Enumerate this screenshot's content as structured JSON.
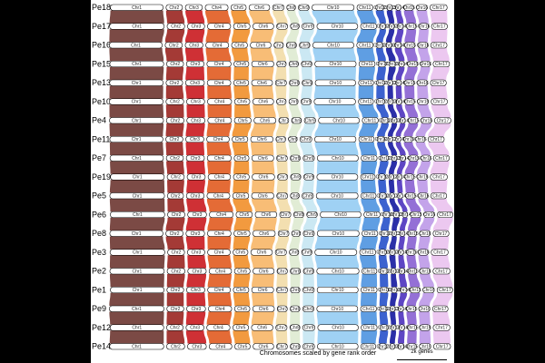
{
  "figure": {
    "caption": "Chromosomes scaled by gene rank order",
    "scale_bar_label": "2k genes",
    "background": "#000000",
    "panel_background": "#ffffff"
  },
  "genomes": [
    "Pe18",
    "Pe17",
    "Pe16",
    "Pe15",
    "Pe13",
    "Pe10",
    "Pe4",
    "Pe11",
    "Pe7",
    "Pe19",
    "Pe5",
    "Pe6",
    "Pe8",
    "Pe3",
    "Pe2",
    "Pe1",
    "Pe9",
    "Pe12",
    "Pe14"
  ],
  "chromosomes": [
    {
      "name": "Chr1",
      "color": "#7b4a45",
      "genes": 3000
    },
    {
      "name": "Chr2",
      "color": "#a43a36",
      "genes": 950
    },
    {
      "name": "Chr3",
      "color": "#cf3035",
      "genes": 1000
    },
    {
      "name": "Chr4",
      "color": "#e46b36",
      "genes": 1300
    },
    {
      "name": "Chr5",
      "color": "#f29a3f",
      "genes": 880
    },
    {
      "name": "Chr6",
      "color": "#f8bd76",
      "genes": 1200
    },
    {
      "name": "Chr7",
      "color": "#f3dfb0",
      "genes": 580
    },
    {
      "name": "Chr8",
      "color": "#e1ecd5",
      "genes": 520
    },
    {
      "name": "Chr9",
      "color": "#cbe8f3",
      "genes": 620
    },
    {
      "name": "Chr10",
      "color": "#9fd1f4",
      "genes": 2300
    },
    {
      "name": "Chr11",
      "color": "#5f9ee3",
      "genes": 860
    },
    {
      "name": "Chr12",
      "color": "#3c62cf",
      "genes": 420
    },
    {
      "name": "Chr13",
      "color": "#2b2fa8",
      "genes": 330
    },
    {
      "name": "Chr14",
      "color": "#5e46c4",
      "genes": 330
    },
    {
      "name": "Chr15",
      "color": "#9470d6",
      "genes": 540
    },
    {
      "name": "Chr16",
      "color": "#c3a3ea",
      "genes": 580
    },
    {
      "name": "Chr17",
      "color": "#ecc8f0",
      "genes": 900
    }
  ]
}
